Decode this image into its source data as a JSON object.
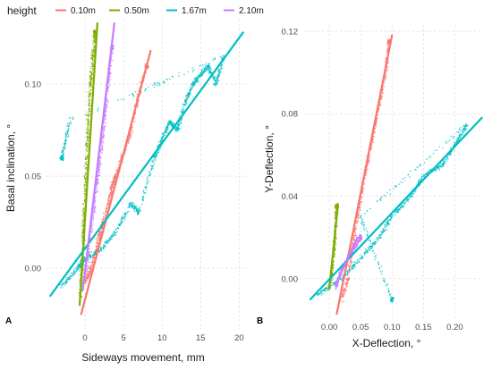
{
  "legend": {
    "title": "height",
    "items": [
      {
        "label": "0.10m",
        "color": "#F8766D"
      },
      {
        "label": "0.50m",
        "color": "#7CAE00"
      },
      {
        "label": "1.67m",
        "color": "#00BFC4"
      },
      {
        "label": "2.10m",
        "color": "#C77CFF"
      }
    ]
  },
  "chart_data": [
    {
      "panel": "A",
      "type": "scatter",
      "xlabel": "Sideways movement, mm",
      "ylabel": "Basal inclination, °",
      "xlim": [
        -5,
        21
      ],
      "ylim": [
        -0.033,
        0.135
      ],
      "x_ticks": [
        0,
        5,
        10,
        15,
        20
      ],
      "x_tick_labels": [
        "0",
        "5",
        "10",
        "15",
        "20"
      ],
      "y_ticks": [
        0.0,
        0.05,
        0.1
      ],
      "y_tick_labels": [
        "0.00",
        "0.05",
        "0.10"
      ],
      "grid": true,
      "series": [
        {
          "name": "0.10m",
          "color": "#F8766D",
          "cloud": [
            [
              0,
              -0.008
            ],
            [
              0.8,
              0.0
            ],
            [
              1.5,
              0.01
            ],
            [
              2,
              0.02
            ],
            [
              3,
              0.035
            ],
            [
              3.5,
              0.045
            ],
            [
              4,
              0.05
            ],
            [
              5,
              0.062
            ],
            [
              6,
              0.075
            ],
            [
              7,
              0.095
            ],
            [
              8,
              0.11
            ]
          ],
          "fit": {
            "x": [
              -0.5,
              8.5
            ],
            "y": [
              -0.025,
              0.118
            ]
          }
        },
        {
          "name": "0.50m",
          "color": "#7CAE00",
          "cloud": [
            [
              -0.6,
              -0.015
            ],
            [
              -0.4,
              0.0
            ],
            [
              -0.2,
              0.02
            ],
            [
              0,
              0.04
            ],
            [
              0.2,
              0.06
            ],
            [
              0.4,
              0.08
            ],
            [
              0.7,
              0.1
            ],
            [
              1.0,
              0.115
            ],
            [
              1.3,
              0.128
            ]
          ],
          "fit": {
            "x": [
              -0.7,
              1.6
            ],
            "y": [
              -0.02,
              0.133
            ]
          }
        },
        {
          "name": "1.67m",
          "color": "#00BFC4",
          "cloud": [
            [
              -3,
              -0.01
            ],
            [
              -1,
              0.0
            ],
            [
              0,
              0.005
            ],
            [
              2,
              0.01
            ],
            [
              4,
              0.02
            ],
            [
              6,
              0.035
            ],
            [
              7,
              0.03
            ],
            [
              9,
              0.06
            ],
            [
              10,
              0.07
            ],
            [
              11,
              0.08
            ],
            [
              12,
              0.075
            ],
            [
              13,
              0.09
            ],
            [
              14,
              0.1
            ],
            [
              15,
              0.105
            ],
            [
              16,
              0.11
            ],
            [
              17,
              0.1
            ],
            [
              18,
              0.115
            ],
            [
              -2,
              0.08
            ],
            [
              -3,
              0.06
            ]
          ],
          "fit": {
            "x": [
              -4.5,
              20.5
            ],
            "y": [
              -0.015,
              0.128
            ]
          }
        },
        {
          "name": "2.10m",
          "color": "#C77CFF",
          "cloud": [
            [
              0,
              -0.005
            ],
            [
              0.8,
              0.02
            ],
            [
              1.5,
              0.045
            ],
            [
              2,
              0.06
            ],
            [
              2.5,
              0.08
            ],
            [
              3,
              0.1
            ],
            [
              3.5,
              0.12
            ]
          ],
          "fit": {
            "x": [
              -0.3,
              3.8
            ],
            "y": [
              -0.012,
              0.133
            ]
          }
        }
      ]
    },
    {
      "panel": "B",
      "type": "scatter",
      "xlabel": "X-Deflection, °",
      "ylabel": "Y-Deflection, °",
      "xlim": [
        -0.04,
        0.245
      ],
      "ylim": [
        -0.02,
        0.123
      ],
      "x_ticks": [
        0.0,
        0.05,
        0.1,
        0.15,
        0.2
      ],
      "x_tick_labels": [
        "0.00",
        "0.05",
        "0.10",
        "0.15",
        "0.20"
      ],
      "y_ticks": [
        0.0,
        0.04,
        0.08,
        0.12
      ],
      "y_tick_labels": [
        "0.00",
        "0.04",
        "0.08",
        "0.12"
      ],
      "grid": true,
      "series": [
        {
          "name": "0.10m",
          "color": "#F8766D",
          "cloud": [
            [
              0.02,
              -0.01
            ],
            [
              0.03,
              0.0
            ],
            [
              0.04,
              0.02
            ],
            [
              0.05,
              0.04
            ],
            [
              0.06,
              0.055
            ],
            [
              0.07,
              0.07
            ],
            [
              0.08,
              0.085
            ],
            [
              0.09,
              0.1
            ],
            [
              0.095,
              0.115
            ]
          ],
          "fit": {
            "x": [
              0.012,
              0.1
            ],
            "y": [
              -0.017,
              0.118
            ]
          }
        },
        {
          "name": "0.50m",
          "color": "#7CAE00",
          "cloud": [
            [
              0.0,
              -0.005
            ],
            [
              0.005,
              0.005
            ],
            [
              0.008,
              0.015
            ],
            [
              0.01,
              0.025
            ],
            [
              0.012,
              0.035
            ]
          ],
          "fit": {
            "x": [
              0.0,
              0.014
            ],
            "y": [
              -0.005,
              0.036
            ]
          }
        },
        {
          "name": "1.67m",
          "color": "#00BFC4",
          "cloud": [
            [
              -0.02,
              -0.008
            ],
            [
              0.02,
              0.0
            ],
            [
              0.05,
              0.01
            ],
            [
              0.08,
              0.02
            ],
            [
              0.1,
              0.03
            ],
            [
              0.13,
              0.04
            ],
            [
              0.15,
              0.05
            ],
            [
              0.18,
              0.055
            ],
            [
              0.2,
              0.065
            ],
            [
              0.22,
              0.075
            ],
            [
              0.05,
              0.03
            ],
            [
              0.1,
              -0.01
            ]
          ],
          "fit": {
            "x": [
              -0.03,
              0.243
            ],
            "y": [
              -0.01,
              0.078
            ]
          }
        },
        {
          "name": "2.10m",
          "color": "#C77CFF",
          "cloud": [
            [
              0.01,
              -0.005
            ],
            [
              0.02,
              0.005
            ],
            [
              0.03,
              0.01
            ],
            [
              0.04,
              0.015
            ],
            [
              0.05,
              0.02
            ]
          ],
          "fit": {
            "x": [
              0.01,
              0.045
            ],
            "y": [
              -0.003,
              0.02
            ]
          }
        }
      ]
    }
  ]
}
